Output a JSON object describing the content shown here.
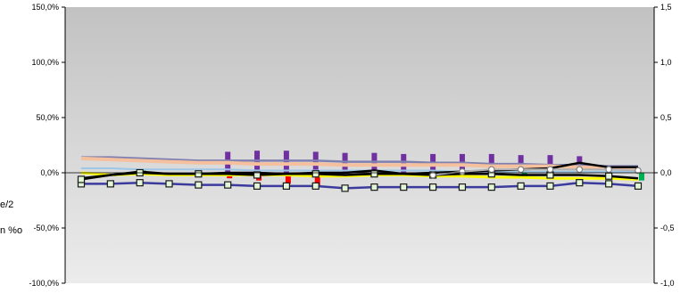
{
  "chart_data": {
    "type": "line",
    "title": "",
    "xlabel": "",
    "ylabel": "",
    "x": [
      1,
      2,
      3,
      4,
      5,
      6,
      7,
      8,
      9,
      10,
      11,
      12,
      13,
      14,
      15,
      16,
      17,
      18,
      19,
      20
    ],
    "ylim": [
      -1.0,
      1.5
    ],
    "y_ticks": [
      "150,0%",
      "100,0%",
      "50,0%",
      "0,0%",
      "-50,0%",
      "-100,0%"
    ],
    "y2lim": [
      -1.0,
      1.5
    ],
    "y2_ticks": [
      "1,5",
      "1,0",
      "0,5",
      "0,0",
      "-0,5",
      "-1,0"
    ],
    "grid": false,
    "legend": "none",
    "side_labels": [
      "e/2",
      "n %o"
    ],
    "bar_series": [
      {
        "color": "#7030a0",
        "values": [
          0,
          0,
          0,
          0,
          0,
          0.19,
          0.2,
          0.2,
          0.19,
          0.18,
          0.18,
          0.17,
          0.17,
          0.17,
          0.17,
          0.16,
          0.16,
          0.15,
          0,
          0
        ]
      },
      {
        "color": "#ff0000",
        "values": [
          0,
          0,
          0,
          0,
          -0.03,
          -0.05,
          -0.07,
          -0.1,
          -0.12,
          0,
          0,
          0,
          0,
          0,
          0,
          0,
          0,
          0,
          0,
          0
        ]
      },
      {
        "color": "#00b050",
        "values": [
          0,
          0,
          0.02,
          0,
          0,
          0,
          0,
          0,
          0,
          0,
          0,
          0,
          0,
          0,
          0,
          -0.03,
          0,
          0,
          0,
          -0.07
        ]
      }
    ],
    "series": [
      {
        "color": "#8080b0",
        "width": 2.5,
        "marker": "none",
        "values": [
          0.14,
          0.14,
          0.13,
          0.12,
          0.11,
          0.11,
          0.11,
          0.11,
          0.11,
          0.1,
          0.1,
          0.1,
          0.09,
          0.09,
          0.08,
          0.08,
          0.07,
          0.07,
          0.06,
          0.06
        ]
      },
      {
        "color": "#f4c09e",
        "width": 4,
        "marker": "none",
        "values": [
          0.13,
          0.12,
          0.11,
          0.1,
          0.09,
          0.09,
          0.08,
          0.08,
          0.08,
          0.07,
          0.07,
          0.07,
          0.07,
          0.07,
          0.06,
          0.06,
          0.06,
          0.05,
          0.04,
          0.04
        ]
      },
      {
        "color": "#9ec6e6",
        "width": 2,
        "marker": "none",
        "values": [
          0.04,
          0.04,
          0.03,
          0.03,
          0.03,
          0.03,
          0.02,
          0.02,
          0.02,
          0.02,
          0.02,
          0.02,
          0.02,
          0.01,
          0.01,
          0.01,
          0.01,
          0.01,
          0.01,
          0.01
        ]
      },
      {
        "color": "#ffff00",
        "width": 3,
        "marker": "none",
        "values": [
          0.0,
          -0.02,
          -0.01,
          -0.02,
          -0.02,
          -0.02,
          -0.02,
          -0.02,
          -0.03,
          -0.03,
          -0.02,
          -0.02,
          -0.03,
          -0.03,
          -0.04,
          -0.04,
          -0.05,
          -0.05,
          -0.05,
          -0.06
        ]
      },
      {
        "color": "#3b3b9e",
        "width": 2.5,
        "marker": "square",
        "values": [
          -0.1,
          -0.1,
          -0.09,
          -0.1,
          -0.11,
          -0.11,
          -0.12,
          -0.12,
          -0.12,
          -0.14,
          -0.13,
          -0.13,
          -0.13,
          -0.13,
          -0.13,
          -0.12,
          -0.12,
          -0.09,
          -0.1,
          -0.12
        ]
      },
      {
        "color": "#000000",
        "width": 2.5,
        "marker": "square",
        "values": [
          -0.06,
          -0.02,
          0.0,
          -0.01,
          -0.01,
          -0.01,
          -0.02,
          -0.01,
          -0.01,
          -0.02,
          -0.01,
          -0.01,
          -0.02,
          -0.01,
          -0.01,
          -0.02,
          -0.02,
          -0.02,
          -0.03,
          -0.05
        ]
      },
      {
        "color": "#000000",
        "width": 2.5,
        "marker": "none",
        "values": [
          -0.05,
          -0.02,
          0.01,
          -0.01,
          -0.01,
          0.0,
          0.0,
          -0.01,
          0.0,
          0.0,
          0.02,
          -0.01,
          0.0,
          0.01,
          0.02,
          0.03,
          0.04,
          0.09,
          0.05,
          0.05
        ]
      },
      {
        "color": "#b0b0b0",
        "width": 2,
        "marker": "circle",
        "values": [
          null,
          null,
          null,
          null,
          null,
          null,
          null,
          null,
          null,
          null,
          null,
          null,
          -0.02,
          0.01,
          0.03,
          0.03,
          0.03,
          0.03,
          0.03,
          0.02
        ]
      }
    ]
  }
}
